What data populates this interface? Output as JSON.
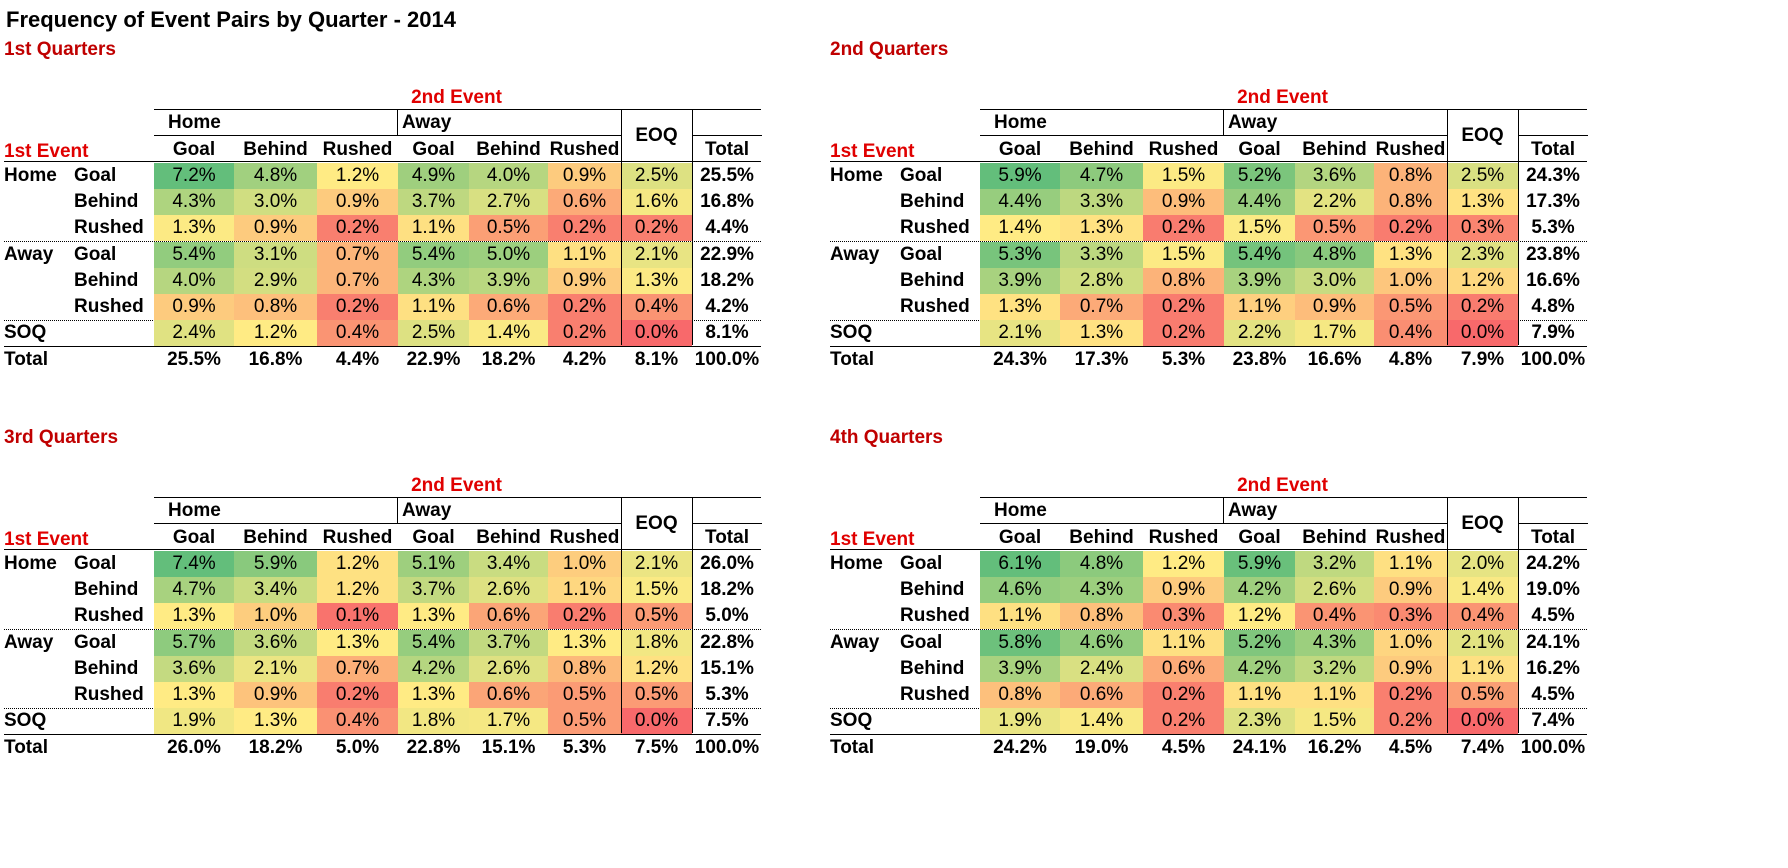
{
  "title": "Frequency of Event Pairs by Quarter - 2014",
  "labels": {
    "second_event": "2nd Event",
    "first_event": "1st Event",
    "home": "Home",
    "away": "Away",
    "eoq": "EOQ",
    "total": "Total",
    "soq": "SOQ",
    "sub_cols": [
      "Goal",
      "Behind",
      "Rushed"
    ],
    "row_groups": [
      "Home",
      "Away"
    ],
    "row_subs": [
      "Goal",
      "Behind",
      "Rushed"
    ]
  },
  "colors": {
    "scale_low": "#f8696b",
    "scale_mid": "#ffeb84",
    "scale_high": "#63be7b",
    "title_red": "#c00000",
    "header_red": "#e00000"
  },
  "chart_data": [
    {
      "type": "heatmap",
      "title": "1st Quarters",
      "columns": [
        "Home Goal",
        "Home Behind",
        "Home Rushed",
        "Away Goal",
        "Away Behind",
        "Away Rushed",
        "EOQ",
        "Total"
      ],
      "rows": [
        {
          "group": "Home",
          "label": "Goal",
          "values": [
            7.2,
            4.8,
            1.2,
            4.9,
            4.0,
            0.9,
            2.5
          ],
          "total": 25.5
        },
        {
          "group": "",
          "label": "Behind",
          "values": [
            4.3,
            3.0,
            0.9,
            3.7,
            2.7,
            0.6,
            1.6
          ],
          "total": 16.8
        },
        {
          "group": "",
          "label": "Rushed",
          "values": [
            1.3,
            0.9,
            0.2,
            1.1,
            0.5,
            0.2,
            0.2
          ],
          "total": 4.4
        },
        {
          "group": "Away",
          "label": "Goal",
          "values": [
            5.4,
            3.1,
            0.7,
            5.4,
            5.0,
            1.1,
            2.1
          ],
          "total": 22.9
        },
        {
          "group": "",
          "label": "Behind",
          "values": [
            4.0,
            2.9,
            0.7,
            4.3,
            3.9,
            0.9,
            1.3
          ],
          "total": 18.2
        },
        {
          "group": "",
          "label": "Rushed",
          "values": [
            0.9,
            0.8,
            0.2,
            1.1,
            0.6,
            0.2,
            0.4
          ],
          "total": 4.2
        },
        {
          "group": "SOQ",
          "label": "",
          "values": [
            2.4,
            1.2,
            0.4,
            2.5,
            1.4,
            0.2,
            0.0
          ],
          "total": 8.1
        }
      ],
      "column_totals": [
        25.5,
        16.8,
        4.4,
        22.9,
        18.2,
        4.2,
        8.1,
        100.0
      ]
    },
    {
      "type": "heatmap",
      "title": "2nd Quarters",
      "columns": [
        "Home Goal",
        "Home Behind",
        "Home Rushed",
        "Away Goal",
        "Away Behind",
        "Away Rushed",
        "EOQ",
        "Total"
      ],
      "rows": [
        {
          "group": "Home",
          "label": "Goal",
          "values": [
            5.9,
            4.7,
            1.5,
            5.2,
            3.6,
            0.8,
            2.5
          ],
          "total": 24.3
        },
        {
          "group": "",
          "label": "Behind",
          "values": [
            4.4,
            3.3,
            0.9,
            4.4,
            2.2,
            0.8,
            1.3
          ],
          "total": 17.3
        },
        {
          "group": "",
          "label": "Rushed",
          "values": [
            1.4,
            1.3,
            0.2,
            1.5,
            0.5,
            0.2,
            0.3
          ],
          "total": 5.3
        },
        {
          "group": "Away",
          "label": "Goal",
          "values": [
            5.3,
            3.3,
            1.5,
            5.4,
            4.8,
            1.3,
            2.3
          ],
          "total": 23.8
        },
        {
          "group": "",
          "label": "Behind",
          "values": [
            3.9,
            2.8,
            0.8,
            3.9,
            3.0,
            1.0,
            1.2
          ],
          "total": 16.6
        },
        {
          "group": "",
          "label": "Rushed",
          "values": [
            1.3,
            0.7,
            0.2,
            1.1,
            0.9,
            0.5,
            0.2
          ],
          "total": 4.8
        },
        {
          "group": "SOQ",
          "label": "",
          "values": [
            2.1,
            1.3,
            0.2,
            2.2,
            1.7,
            0.4,
            0.0
          ],
          "total": 7.9
        }
      ],
      "column_totals": [
        24.3,
        17.3,
        5.3,
        23.8,
        16.6,
        4.8,
        7.9,
        100.0
      ]
    },
    {
      "type": "heatmap",
      "title": "3rd Quarters",
      "columns": [
        "Home Goal",
        "Home Behind",
        "Home Rushed",
        "Away Goal",
        "Away Behind",
        "Away Rushed",
        "EOQ",
        "Total"
      ],
      "rows": [
        {
          "group": "Home",
          "label": "Goal",
          "values": [
            7.4,
            5.9,
            1.2,
            5.1,
            3.4,
            1.0,
            2.1
          ],
          "total": 26.0
        },
        {
          "group": "",
          "label": "Behind",
          "values": [
            4.7,
            3.4,
            1.2,
            3.7,
            2.6,
            1.1,
            1.5
          ],
          "total": 18.2
        },
        {
          "group": "",
          "label": "Rushed",
          "values": [
            1.3,
            1.0,
            0.1,
            1.3,
            0.6,
            0.2,
            0.5
          ],
          "total": 5.0
        },
        {
          "group": "Away",
          "label": "Goal",
          "values": [
            5.7,
            3.6,
            1.3,
            5.4,
            3.7,
            1.3,
            1.8
          ],
          "total": 22.8
        },
        {
          "group": "",
          "label": "Behind",
          "values": [
            3.6,
            2.1,
            0.7,
            4.2,
            2.6,
            0.8,
            1.2
          ],
          "total": 15.1
        },
        {
          "group": "",
          "label": "Rushed",
          "values": [
            1.3,
            0.9,
            0.2,
            1.3,
            0.6,
            0.5,
            0.5
          ],
          "total": 5.3
        },
        {
          "group": "SOQ",
          "label": "",
          "values": [
            1.9,
            1.3,
            0.4,
            1.8,
            1.7,
            0.5,
            0.0
          ],
          "total": 7.5
        }
      ],
      "column_totals": [
        26.0,
        18.2,
        5.0,
        22.8,
        15.1,
        5.3,
        7.5,
        100.0
      ]
    },
    {
      "type": "heatmap",
      "title": "4th Quarters",
      "columns": [
        "Home Goal",
        "Home Behind",
        "Home Rushed",
        "Away Goal",
        "Away Behind",
        "Away Rushed",
        "EOQ",
        "Total"
      ],
      "rows": [
        {
          "group": "Home",
          "label": "Goal",
          "values": [
            6.1,
            4.8,
            1.2,
            5.9,
            3.2,
            1.1,
            2.0
          ],
          "total": 24.2
        },
        {
          "group": "",
          "label": "Behind",
          "values": [
            4.6,
            4.3,
            0.9,
            4.2,
            2.6,
            0.9,
            1.4
          ],
          "total": 19.0
        },
        {
          "group": "",
          "label": "Rushed",
          "values": [
            1.1,
            0.8,
            0.3,
            1.2,
            0.4,
            0.3,
            0.4
          ],
          "total": 4.5
        },
        {
          "group": "Away",
          "label": "Goal",
          "values": [
            5.8,
            4.6,
            1.1,
            5.2,
            4.3,
            1.0,
            2.1
          ],
          "total": 24.1
        },
        {
          "group": "",
          "label": "Behind",
          "values": [
            3.9,
            2.4,
            0.6,
            4.2,
            3.2,
            0.9,
            1.1
          ],
          "total": 16.2
        },
        {
          "group": "",
          "label": "Rushed",
          "values": [
            0.8,
            0.6,
            0.2,
            1.1,
            1.1,
            0.2,
            0.5
          ],
          "total": 4.5
        },
        {
          "group": "SOQ",
          "label": "",
          "values": [
            1.9,
            1.4,
            0.2,
            2.3,
            1.5,
            0.2,
            0.0
          ],
          "total": 7.4
        }
      ],
      "column_totals": [
        24.2,
        19.0,
        4.5,
        24.1,
        16.2,
        4.5,
        7.4,
        100.0
      ]
    }
  ]
}
